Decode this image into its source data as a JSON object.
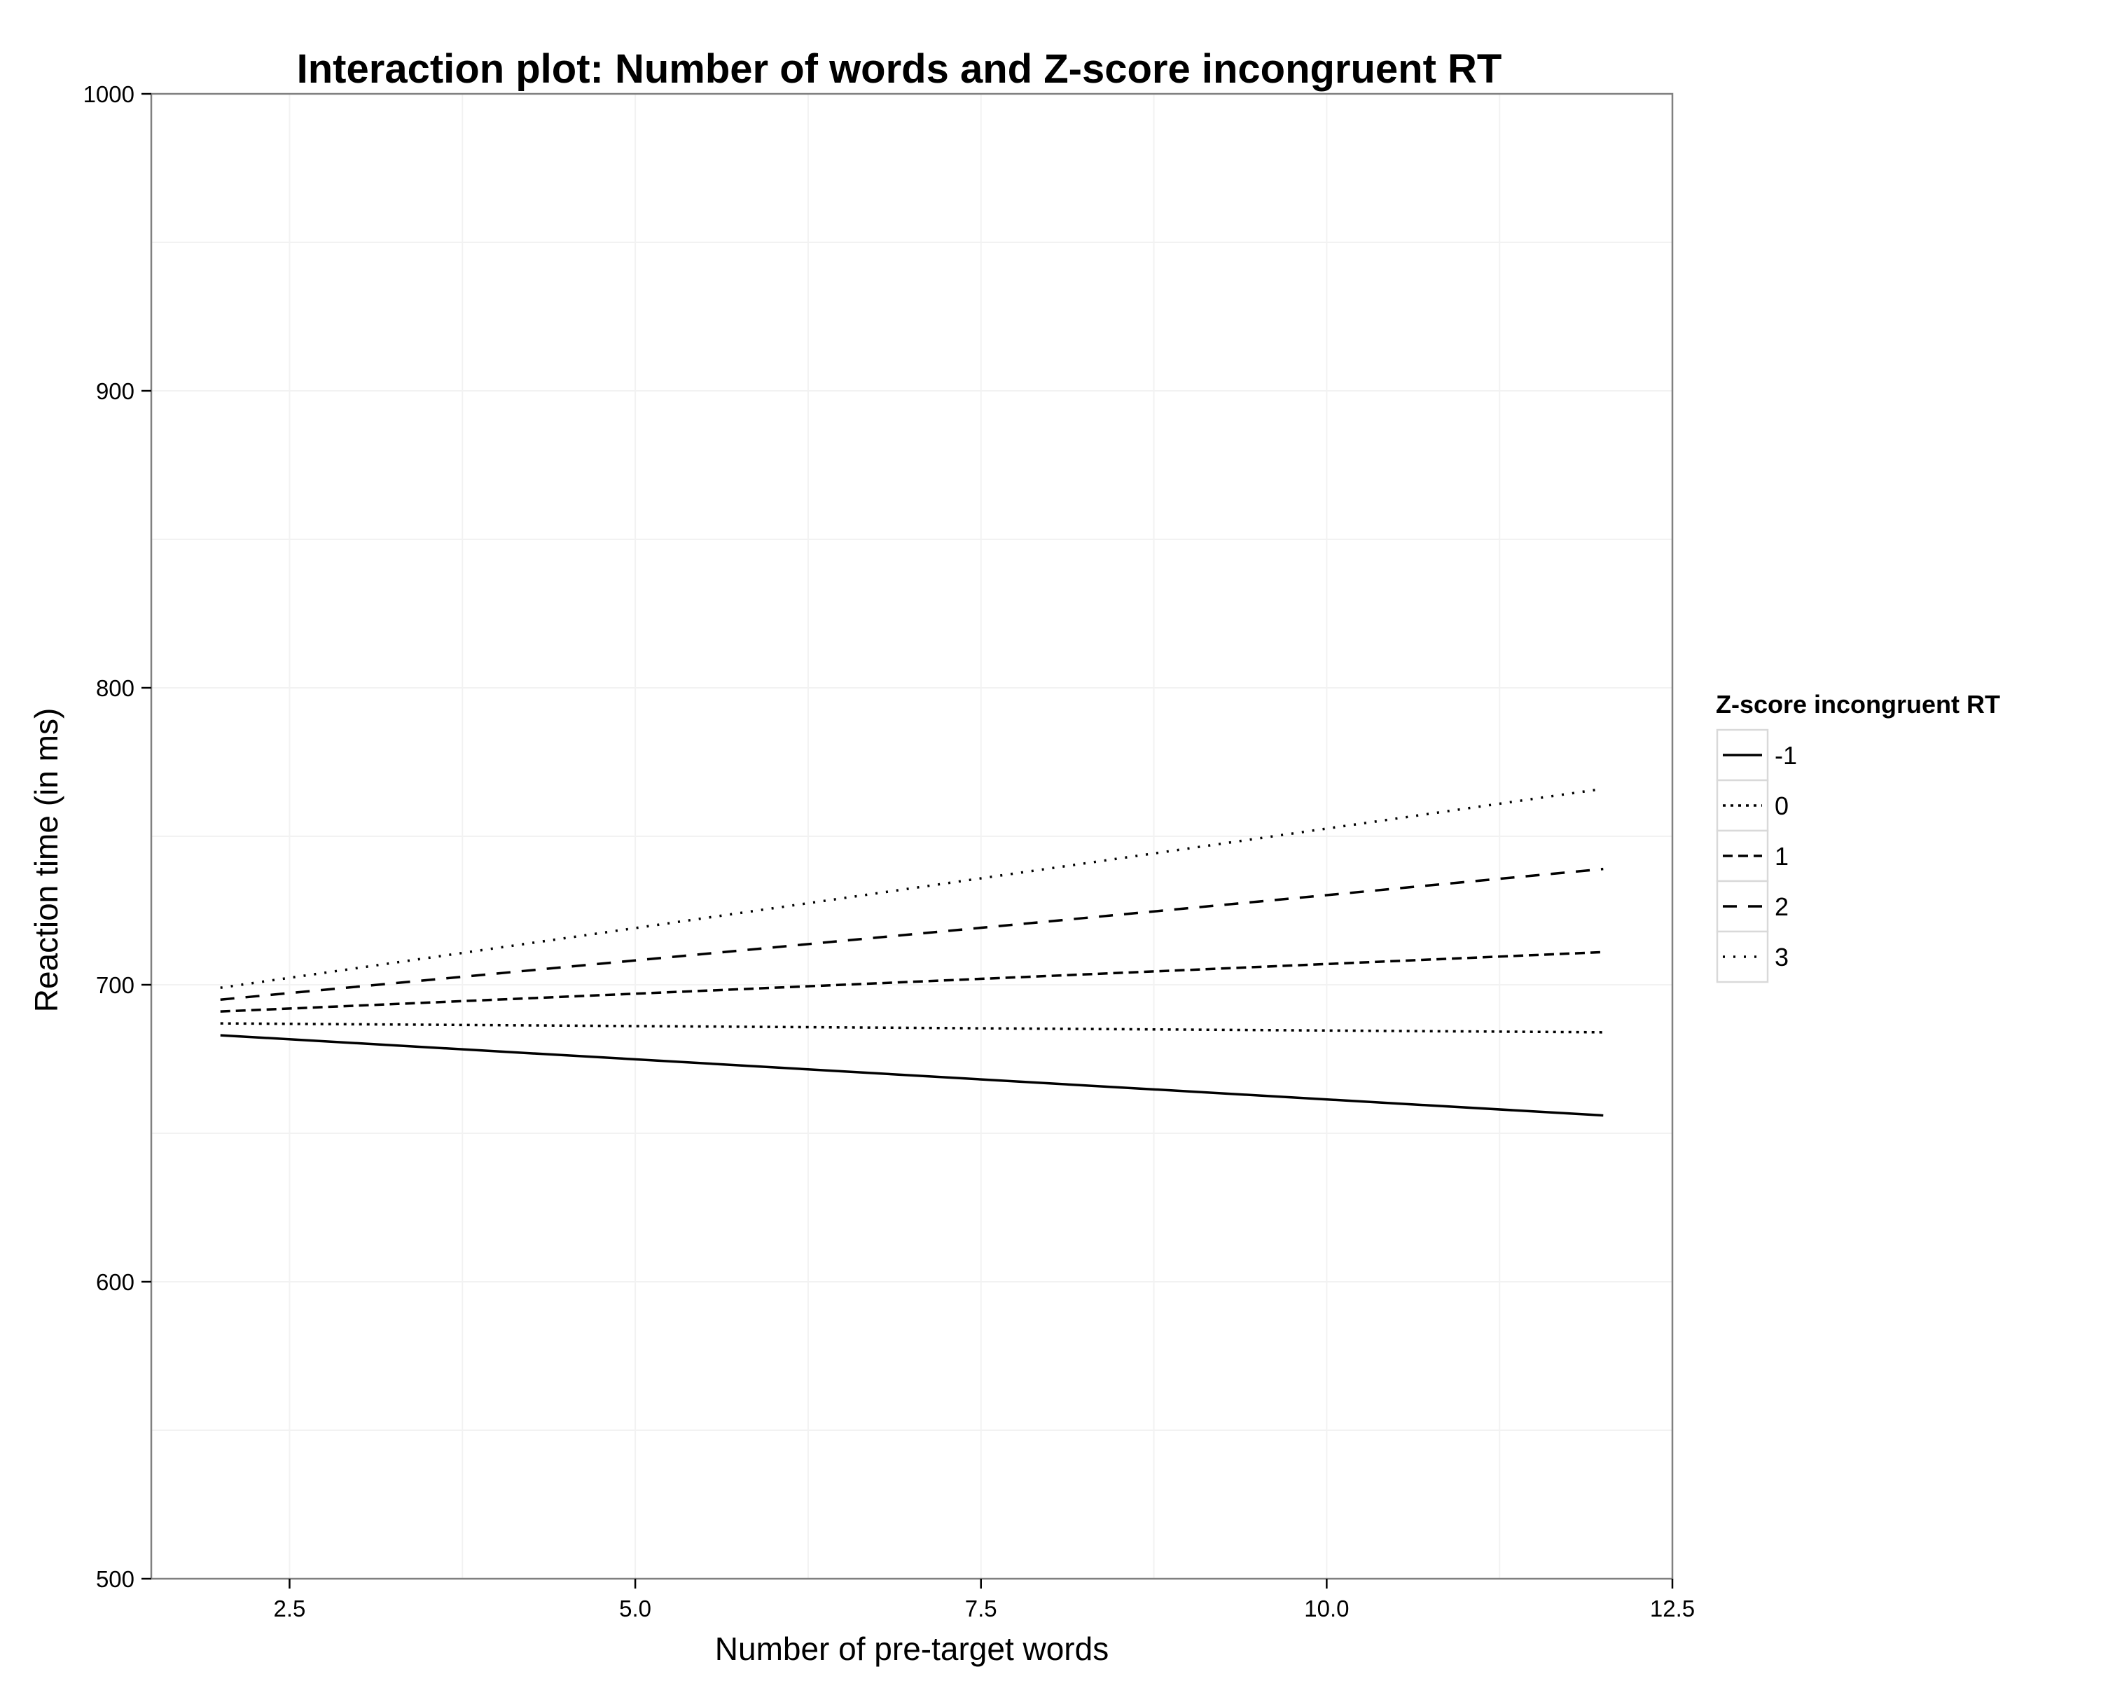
{
  "chart_data": {
    "type": "line",
    "title": "Interaction plot: Number of words and Z-score incongruent RT",
    "xlabel": "Number of pre-target words",
    "ylabel": "Reaction time (in ms)",
    "xlim": [
      1.5,
      12.5
    ],
    "ylim": [
      500,
      1000
    ],
    "x_ticks": [
      "2.5",
      "5.0",
      "7.5",
      "10.0",
      "12.5"
    ],
    "x_tick_values": [
      2.5,
      5.0,
      7.5,
      10.0,
      12.5
    ],
    "y_ticks": [
      "500",
      "600",
      "700",
      "800",
      "900",
      "1000"
    ],
    "y_tick_values": [
      500,
      600,
      700,
      800,
      900,
      1000
    ],
    "grid": true,
    "legend": {
      "title": "Z-score incongruent RT",
      "placement": "right"
    },
    "x": [
      2,
      12
    ],
    "series": [
      {
        "name": "-1",
        "values": [
          683,
          656
        ],
        "dash": "solid"
      },
      {
        "name": "0",
        "values": [
          687,
          684
        ],
        "dash": "dotted"
      },
      {
        "name": "1",
        "values": [
          691,
          711
        ],
        "dash": "dashed"
      },
      {
        "name": "2",
        "values": [
          695,
          739
        ],
        "dash": "longdash"
      },
      {
        "name": "3",
        "values": [
          699,
          766
        ],
        "dash": "dotted-sparse"
      }
    ]
  }
}
